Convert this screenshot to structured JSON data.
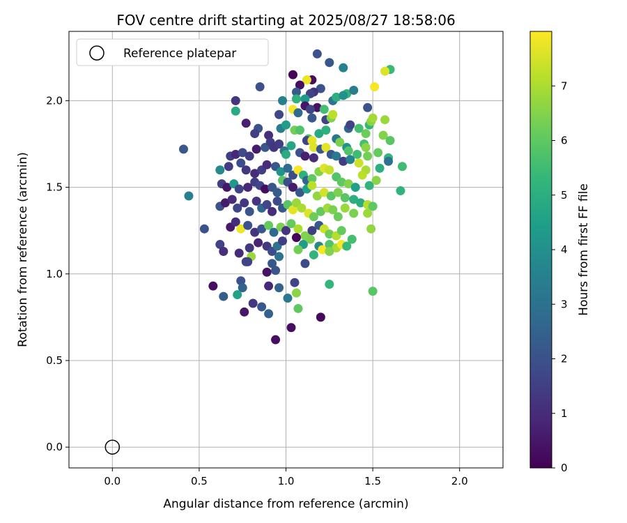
{
  "chart_data": {
    "type": "scatter",
    "title": "FOV centre drift starting at 2025/08/27 18:58:06",
    "xlabel": "Angular distance from reference (arcmin)",
    "ylabel": "Rotation from reference (arcmin)",
    "xlim": [
      -0.25,
      2.25
    ],
    "ylim": [
      -0.12,
      2.4
    ],
    "xticks": [
      0.0,
      0.5,
      1.0,
      1.5,
      2.0
    ],
    "xtick_labels": [
      "0.0",
      "0.5",
      "1.0",
      "1.5",
      "2.0"
    ],
    "yticks": [
      0.0,
      0.5,
      1.0,
      1.5,
      2.0
    ],
    "ytick_labels": [
      "0.0",
      "0.5",
      "1.0",
      "1.5",
      "2.0"
    ],
    "grid": true,
    "colormap": "viridis",
    "colorbar": {
      "label": "Hours from first FF file",
      "range": [
        0,
        8
      ],
      "ticks": [
        0,
        1,
        2,
        3,
        4,
        5,
        6,
        7
      ],
      "tick_labels": [
        "0",
        "1",
        "2",
        "3",
        "4",
        "5",
        "6",
        "7"
      ]
    },
    "legend": {
      "position": "top-left",
      "label": "Reference platepar"
    },
    "reference_point": {
      "x": 0.0,
      "y": 0.0
    },
    "points": [
      [
        1.04,
        2.15,
        0.1
      ],
      [
        1.15,
        2.12,
        0.3
      ],
      [
        1.18,
        2.27,
        2.0
      ],
      [
        1.25,
        2.22,
        2.2
      ],
      [
        1.33,
        2.19,
        3.6
      ],
      [
        1.6,
        2.18,
        5.4
      ],
      [
        1.57,
        2.17,
        7.6
      ],
      [
        1.12,
        2.12,
        7.8
      ],
      [
        1.2,
        2.07,
        2.0
      ],
      [
        1.16,
        2.05,
        1.2
      ],
      [
        0.85,
        2.08,
        2.0
      ],
      [
        1.08,
        2.09,
        0.3
      ],
      [
        1.06,
        2.05,
        2.3
      ],
      [
        1.18,
        1.96,
        0.4
      ],
      [
        1.14,
        2.04,
        1.6
      ],
      [
        1.27,
        2.0,
        3.0
      ],
      [
        1.29,
        2.02,
        5.0
      ],
      [
        1.35,
        2.04,
        5.2
      ],
      [
        1.33,
        2.03,
        4.0
      ],
      [
        1.39,
        2.06,
        3.4
      ],
      [
        1.51,
        2.08,
        7.9
      ],
      [
        1.06,
        2.01,
        5.1
      ],
      [
        1.04,
        1.95,
        7.9
      ],
      [
        0.71,
        2.0,
        1.2
      ],
      [
        0.98,
        2.0,
        3.5
      ],
      [
        0.71,
        1.94,
        4.8
      ],
      [
        0.96,
        1.92,
        1.7
      ],
      [
        1.07,
        1.93,
        2.8
      ],
      [
        1.11,
        2.01,
        4.3
      ],
      [
        1.11,
        1.97,
        0.5
      ],
      [
        1.14,
        1.95,
        1.6
      ],
      [
        1.15,
        1.9,
        2.2
      ],
      [
        1.22,
        1.95,
        5.6
      ],
      [
        1.23,
        1.89,
        1.6
      ],
      [
        1.26,
        1.9,
        6.5
      ],
      [
        1.27,
        1.92,
        7.2
      ],
      [
        1.36,
        1.84,
        2.6
      ],
      [
        1.37,
        1.86,
        1.6
      ],
      [
        1.42,
        1.84,
        5.6
      ],
      [
        1.47,
        1.96,
        2.0
      ],
      [
        1.48,
        1.86,
        5.3
      ],
      [
        1.49,
        1.88,
        6.6
      ],
      [
        1.5,
        1.9,
        6.9
      ],
      [
        1.57,
        1.89,
        6.8
      ],
      [
        1.46,
        1.81,
        6.2
      ],
      [
        1.56,
        1.8,
        6.5
      ],
      [
        1.6,
        1.77,
        5.9
      ],
      [
        0.77,
        1.87,
        0.7
      ],
      [
        0.84,
        1.84,
        2.0
      ],
      [
        0.82,
        1.81,
        1.5
      ],
      [
        0.9,
        1.8,
        1.1
      ],
      [
        0.97,
        1.84,
        3.4
      ],
      [
        1.0,
        1.86,
        4.4
      ],
      [
        1.05,
        1.83,
        6.3
      ],
      [
        1.08,
        1.83,
        5.8
      ],
      [
        1.13,
        1.78,
        5.7
      ],
      [
        1.12,
        1.77,
        1.6
      ],
      [
        1.15,
        1.77,
        7.7
      ],
      [
        1.16,
        1.73,
        7.6
      ],
      [
        1.19,
        1.81,
        4.8
      ],
      [
        1.23,
        1.83,
        5.1
      ],
      [
        1.29,
        1.78,
        3.2
      ],
      [
        1.31,
        1.76,
        6.4
      ],
      [
        1.35,
        1.73,
        4.1
      ],
      [
        1.36,
        1.71,
        5.8
      ],
      [
        1.45,
        1.75,
        5.6
      ],
      [
        1.46,
        1.73,
        6.6
      ],
      [
        1.53,
        1.7,
        6.1
      ],
      [
        1.59,
        1.67,
        5.3
      ],
      [
        1.41,
        1.69,
        5.5
      ],
      [
        1.47,
        1.68,
        6.3
      ],
      [
        0.41,
        1.72,
        2.2
      ],
      [
        0.68,
        1.68,
        1.5
      ],
      [
        0.71,
        1.69,
        0.9
      ],
      [
        0.75,
        1.7,
        1.8
      ],
      [
        0.79,
        1.68,
        1.4
      ],
      [
        0.83,
        1.72,
        0.6
      ],
      [
        0.88,
        1.73,
        2.2
      ],
      [
        0.91,
        1.76,
        1.4
      ],
      [
        0.93,
        1.73,
        1.2
      ],
      [
        0.96,
        1.75,
        1.4
      ],
      [
        0.99,
        1.71,
        3.0
      ],
      [
        1.0,
        1.69,
        4.9
      ],
      [
        1.03,
        1.74,
        4.7
      ],
      [
        1.08,
        1.7,
        2.0
      ],
      [
        1.11,
        1.68,
        0.7
      ],
      [
        1.16,
        1.67,
        1.0
      ],
      [
        1.2,
        1.72,
        2.2
      ],
      [
        1.23,
        1.73,
        7.7
      ],
      [
        1.26,
        1.69,
        2.2
      ],
      [
        1.29,
        1.68,
        3.2
      ],
      [
        1.33,
        1.65,
        1.4
      ],
      [
        1.37,
        1.66,
        3.6
      ],
      [
        1.42,
        1.64,
        7.4
      ],
      [
        1.46,
        1.6,
        7.0
      ],
      [
        1.54,
        1.61,
        5.0
      ],
      [
        1.59,
        1.65,
        3.0
      ],
      [
        1.67,
        1.62,
        5.5
      ],
      [
        0.62,
        1.6,
        3.8
      ],
      [
        0.67,
        1.62,
        1.4
      ],
      [
        0.74,
        1.64,
        1.9
      ],
      [
        0.77,
        1.6,
        1.3
      ],
      [
        0.82,
        1.58,
        1.0
      ],
      [
        0.86,
        1.6,
        1.5
      ],
      [
        0.89,
        1.63,
        1.0
      ],
      [
        0.94,
        1.62,
        2.2
      ],
      [
        0.97,
        1.59,
        4.1
      ],
      [
        1.01,
        1.61,
        2.8
      ],
      [
        1.04,
        1.57,
        1.9
      ],
      [
        1.07,
        1.6,
        7.9
      ],
      [
        1.1,
        1.57,
        5.1
      ],
      [
        1.12,
        1.54,
        2.6
      ],
      [
        1.15,
        1.55,
        6.0
      ],
      [
        1.19,
        1.59,
        6.5
      ],
      [
        1.22,
        1.61,
        7.6
      ],
      [
        1.25,
        1.6,
        7.3
      ],
      [
        1.29,
        1.56,
        5.8
      ],
      [
        1.32,
        1.53,
        6.0
      ],
      [
        1.36,
        1.52,
        6.5
      ],
      [
        1.4,
        1.5,
        4.5
      ],
      [
        1.44,
        1.57,
        7.2
      ],
      [
        1.48,
        1.51,
        5.2
      ],
      [
        1.52,
        1.54,
        6.6
      ],
      [
        1.66,
        1.48,
        5.2
      ],
      [
        0.44,
        1.45,
        3.5
      ],
      [
        0.63,
        1.52,
        1.5
      ],
      [
        0.66,
        1.5,
        0.5
      ],
      [
        0.7,
        1.52,
        4.3
      ],
      [
        0.73,
        1.49,
        1.6
      ],
      [
        0.78,
        1.5,
        0.9
      ],
      [
        0.82,
        1.53,
        1.5
      ],
      [
        0.85,
        1.51,
        1.7
      ],
      [
        0.88,
        1.49,
        0.3
      ],
      [
        0.92,
        1.5,
        2.1
      ],
      [
        0.95,
        1.47,
        2.3
      ],
      [
        0.98,
        1.54,
        5.9
      ],
      [
        1.01,
        1.53,
        1.8
      ],
      [
        1.04,
        1.5,
        0.6
      ],
      [
        1.08,
        1.47,
        2.2
      ],
      [
        1.12,
        1.49,
        4.5
      ],
      [
        1.15,
        1.51,
        7.2
      ],
      [
        1.18,
        1.45,
        6.7
      ],
      [
        1.22,
        1.47,
        7.5
      ],
      [
        1.26,
        1.45,
        5.9
      ],
      [
        1.3,
        1.47,
        6.4
      ],
      [
        1.34,
        1.44,
        5.9
      ],
      [
        1.39,
        1.43,
        5.0
      ],
      [
        1.43,
        1.41,
        4.9
      ],
      [
        1.47,
        1.4,
        7.1
      ],
      [
        1.5,
        1.39,
        6.0
      ],
      [
        0.53,
        1.26,
        2.0
      ],
      [
        0.62,
        1.39,
        2.0
      ],
      [
        0.65,
        1.41,
        0.6
      ],
      [
        0.69,
        1.43,
        1.0
      ],
      [
        0.72,
        1.38,
        1.7
      ],
      [
        0.76,
        1.41,
        1.3
      ],
      [
        0.79,
        1.36,
        2.1
      ],
      [
        0.83,
        1.42,
        1.2
      ],
      [
        0.86,
        1.38,
        2.6
      ],
      [
        0.89,
        1.4,
        1.7
      ],
      [
        0.92,
        1.36,
        1.0
      ],
      [
        0.95,
        1.42,
        1.8
      ],
      [
        0.98,
        1.38,
        2.2
      ],
      [
        1.01,
        1.4,
        5.9
      ],
      [
        1.04,
        1.37,
        7.7
      ],
      [
        1.06,
        1.41,
        6.8
      ],
      [
        1.09,
        1.38,
        7.0
      ],
      [
        1.13,
        1.35,
        7.6
      ],
      [
        1.16,
        1.33,
        6.2
      ],
      [
        1.2,
        1.36,
        6.1
      ],
      [
        1.24,
        1.38,
        6.9
      ],
      [
        1.27,
        1.37,
        6.4
      ],
      [
        1.3,
        1.33,
        6.2
      ],
      [
        1.34,
        1.38,
        6.8
      ],
      [
        1.39,
        1.35,
        6.4
      ],
      [
        1.47,
        1.35,
        6.8
      ],
      [
        0.68,
        1.27,
        0.6
      ],
      [
        0.71,
        1.3,
        1.0
      ],
      [
        0.74,
        1.26,
        7.8
      ],
      [
        0.78,
        1.28,
        2.0
      ],
      [
        0.82,
        1.24,
        1.2
      ],
      [
        0.86,
        1.26,
        2.1
      ],
      [
        0.9,
        1.28,
        6.1
      ],
      [
        0.93,
        1.24,
        2.7
      ],
      [
        0.97,
        1.27,
        6.4
      ],
      [
        1.0,
        1.25,
        1.2
      ],
      [
        1.03,
        1.29,
        6.1
      ],
      [
        1.07,
        1.26,
        7.0
      ],
      [
        1.11,
        1.22,
        6.5
      ],
      [
        1.15,
        1.25,
        1.5
      ],
      [
        1.19,
        1.28,
        2.2
      ],
      [
        1.22,
        1.26,
        7.4
      ],
      [
        1.25,
        1.23,
        6.2
      ],
      [
        1.29,
        1.22,
        7.1
      ],
      [
        1.32,
        1.25,
        6.1
      ],
      [
        1.49,
        1.26,
        6.7
      ],
      [
        0.62,
        1.17,
        1.6
      ],
      [
        0.64,
        1.13,
        1.1
      ],
      [
        0.73,
        1.12,
        1.0
      ],
      [
        0.77,
        1.07,
        1.7
      ],
      [
        0.79,
        1.15,
        1.3
      ],
      [
        0.8,
        1.1,
        6.8
      ],
      [
        0.84,
        1.18,
        0.8
      ],
      [
        0.89,
        1.16,
        1.3
      ],
      [
        0.92,
        1.13,
        1.8
      ],
      [
        0.95,
        1.16,
        3.0
      ],
      [
        0.98,
        1.19,
        1.5
      ],
      [
        1.06,
        1.21,
        0.1
      ],
      [
        1.1,
        1.17,
        4.4
      ],
      [
        1.14,
        1.2,
        6.4
      ],
      [
        1.19,
        1.16,
        3.8
      ],
      [
        1.21,
        1.14,
        7.9
      ],
      [
        1.25,
        1.17,
        5.8
      ],
      [
        1.29,
        1.15,
        7.0
      ],
      [
        1.32,
        1.17,
        7.9
      ],
      [
        1.35,
        1.16,
        5.4
      ],
      [
        1.38,
        1.2,
        5.6
      ],
      [
        1.16,
        1.11,
        5.2
      ],
      [
        1.25,
        1.13,
        6.5
      ],
      [
        0.96,
        1.1,
        3.0
      ],
      [
        1.07,
        1.14,
        6.3
      ],
      [
        1.11,
        1.06,
        1.8
      ],
      [
        0.92,
        1.06,
        2.2
      ],
      [
        0.89,
        1.01,
        0.4
      ],
      [
        0.94,
        1.02,
        2.1
      ],
      [
        0.78,
        1.07,
        1.6
      ],
      [
        0.74,
        0.96,
        2.0
      ],
      [
        0.75,
        0.92,
        2.5
      ],
      [
        0.58,
        0.93,
        0.3
      ],
      [
        0.9,
        0.93,
        0.9
      ],
      [
        0.96,
        0.92,
        2.5
      ],
      [
        1.05,
        0.95,
        1.6
      ],
      [
        1.06,
        0.89,
        6.6
      ],
      [
        1.25,
        0.94,
        5.3
      ],
      [
        1.5,
        0.9,
        5.9
      ],
      [
        0.64,
        0.87,
        2.3
      ],
      [
        0.72,
        0.88,
        4.6
      ],
      [
        0.81,
        0.83,
        1.3
      ],
      [
        0.86,
        0.81,
        2.2
      ],
      [
        0.9,
        0.77,
        2.5
      ],
      [
        0.76,
        0.78,
        0.5
      ],
      [
        1.01,
        0.86,
        3.2
      ],
      [
        1.07,
        0.8,
        6.0
      ],
      [
        1.2,
        0.75,
        0.2
      ],
      [
        1.03,
        0.69,
        0.3
      ],
      [
        0.94,
        0.62,
        0.3
      ]
    ]
  }
}
